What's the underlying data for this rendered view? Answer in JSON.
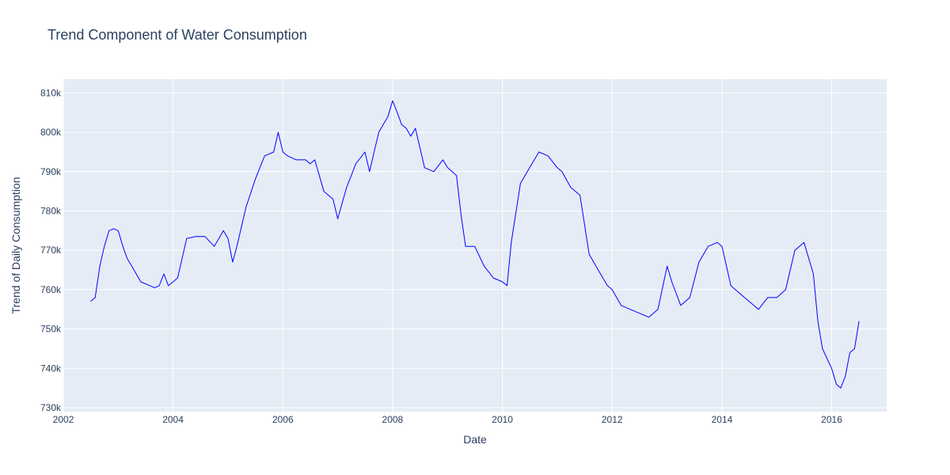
{
  "chart_data": {
    "type": "line",
    "title": "Trend Component of Water Consumption",
    "xlabel": "Date",
    "ylabel": "Trend of Daily Consumption",
    "xlim": [
      "2002-01-01",
      "2017-01-01"
    ],
    "ylim": [
      729000,
      813500
    ],
    "x_ticks": [
      2002,
      2004,
      2006,
      2008,
      2010,
      2012,
      2014,
      2016
    ],
    "x_tick_labels": [
      "2002",
      "2004",
      "2006",
      "2008",
      "2010",
      "2012",
      "2014",
      "2016"
    ],
    "y_ticks": [
      730000,
      740000,
      750000,
      760000,
      770000,
      780000,
      790000,
      800000,
      810000
    ],
    "y_tick_labels": [
      "730k",
      "740k",
      "750k",
      "760k",
      "770k",
      "780k",
      "790k",
      "800k",
      "810k"
    ],
    "grid": true,
    "legend": "none",
    "colors": {
      "line": "#0000ff",
      "plot_bg": "#e5ecf6",
      "text": "#2a3f5f",
      "grid": "#ffffff"
    },
    "series": [
      {
        "x": [
          "2002-07-01",
          "2002-08-01",
          "2002-09-01",
          "2002-10-01",
          "2002-11-01",
          "2002-12-01",
          "2003-01-01",
          "2003-02-01",
          "2003-03-01",
          "2003-04-01",
          "2003-06-01",
          "2003-08-01",
          "2003-09-01",
          "2003-10-01",
          "2003-11-01",
          "2003-12-01",
          "2004-01-01",
          "2004-02-01",
          "2004-04-01",
          "2004-06-01",
          "2004-08-01",
          "2004-10-01",
          "2004-12-01",
          "2005-01-01",
          "2005-02-01",
          "2005-03-01",
          "2005-05-01",
          "2005-07-01",
          "2005-09-01",
          "2005-11-01",
          "2005-12-01",
          "2006-01-01",
          "2006-02-01",
          "2006-04-01",
          "2006-06-01",
          "2006-07-01",
          "2006-08-01",
          "2006-10-01",
          "2006-12-01",
          "2007-01-01",
          "2007-03-01",
          "2007-04-01",
          "2007-05-01",
          "2007-07-01",
          "2007-08-01",
          "2007-10-01",
          "2007-12-01",
          "2008-01-01",
          "2008-02-01",
          "2008-03-01",
          "2008-04-01",
          "2008-05-01",
          "2008-06-01",
          "2008-08-01",
          "2008-10-01",
          "2008-12-01",
          "2009-01-01",
          "2009-02-01",
          "2009-03-01",
          "2009-04-01",
          "2009-05-01",
          "2009-07-01",
          "2009-09-01",
          "2009-11-01",
          "2010-01-01",
          "2010-02-01",
          "2010-03-01",
          "2010-05-01",
          "2010-07-01",
          "2010-09-01",
          "2010-11-01",
          "2011-01-01",
          "2011-02-01",
          "2011-04-01",
          "2011-06-01",
          "2011-08-01",
          "2011-10-01",
          "2011-12-01",
          "2012-01-01",
          "2012-03-01",
          "2012-05-01",
          "2012-07-01",
          "2012-09-01",
          "2012-11-01",
          "2013-01-01",
          "2013-02-01",
          "2013-04-01",
          "2013-06-01",
          "2013-08-01",
          "2013-10-01",
          "2013-12-01",
          "2014-01-01",
          "2014-03-01",
          "2014-05-01",
          "2014-07-01",
          "2014-09-01",
          "2014-11-01",
          "2015-01-01",
          "2015-03-01",
          "2015-05-01",
          "2015-07-01",
          "2015-09-01",
          "2015-10-01",
          "2015-11-01",
          "2016-01-01",
          "2016-02-01",
          "2016-03-01",
          "2016-04-01",
          "2016-05-01",
          "2016-06-01",
          "2016-07-01"
        ],
        "y": [
          757000,
          758000,
          766000,
          771000,
          775000,
          775500,
          775000,
          771000,
          768000,
          766000,
          762000,
          761000,
          760500,
          761000,
          764000,
          761000,
          762000,
          763000,
          773000,
          773500,
          773500,
          771000,
          775000,
          773000,
          767000,
          771000,
          781000,
          788000,
          794000,
          795000,
          800000,
          795000,
          794000,
          793000,
          793000,
          792000,
          793000,
          785000,
          783000,
          778000,
          786000,
          789000,
          792000,
          795000,
          790000,
          800000,
          804000,
          808000,
          805000,
          802000,
          801000,
          799000,
          801000,
          791000,
          790000,
          793000,
          791000,
          790000,
          789000,
          779000,
          771000,
          771000,
          766000,
          763000,
          762000,
          761000,
          772000,
          787000,
          791000,
          795000,
          794000,
          791000,
          790000,
          786000,
          784000,
          769000,
          765000,
          761000,
          760000,
          756000,
          755000,
          754000,
          753000,
          755000,
          766000,
          762000,
          756000,
          758000,
          767000,
          771000,
          772000,
          771000,
          761000,
          759000,
          757000,
          755000,
          758000,
          758000,
          760000,
          770000,
          772000,
          764000,
          752000,
          745000,
          740000,
          736000,
          735000,
          738000,
          744000,
          745000,
          752000
        ]
      }
    ]
  }
}
